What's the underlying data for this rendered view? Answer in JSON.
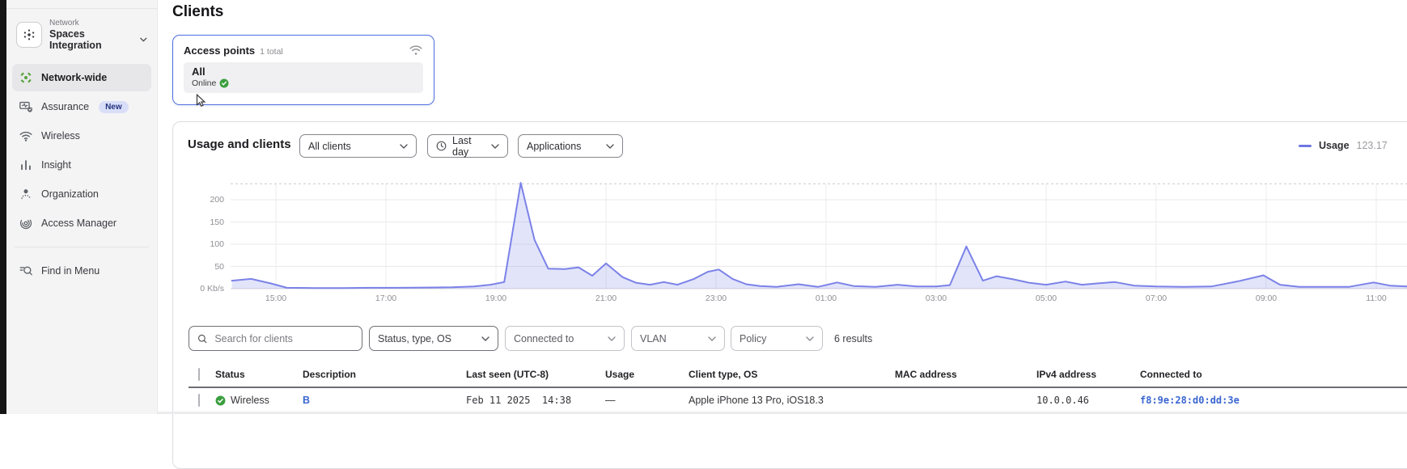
{
  "sidebar": {
    "network_label": "Network",
    "network_name": "Spaces Integration",
    "items": [
      {
        "label": "Network-wide",
        "active": true
      },
      {
        "label": "Assurance",
        "badge": "New"
      },
      {
        "label": "Wireless"
      },
      {
        "label": "Insight"
      },
      {
        "label": "Organization"
      },
      {
        "label": "Access Manager"
      }
    ],
    "footer_item": "Find in Menu"
  },
  "page": {
    "title": "Clients"
  },
  "access_points_card": {
    "title": "Access points",
    "total_label": "1 total",
    "group_name": "All",
    "status": "Online"
  },
  "usage_panel": {
    "title": "Usage and clients",
    "dropdowns": [
      {
        "label": "All clients"
      },
      {
        "label": "Last day",
        "icon": "clock"
      },
      {
        "label": "Applications"
      }
    ],
    "legend": {
      "series": "Usage",
      "value": "123.17"
    }
  },
  "chart_data": {
    "type": "area",
    "title": "Usage and clients",
    "ylabel": "Kb/s",
    "ylim": [
      0,
      236
    ],
    "yticks": [
      50,
      100,
      150,
      200
    ],
    "ytick_labels": {
      "0": "0 Kb/s",
      "50": "50",
      "100": "100",
      "150": "150",
      "200": "200"
    },
    "xticks": [
      15,
      17,
      19,
      21,
      23,
      25,
      27,
      29,
      31,
      33,
      35
    ],
    "xtick_labels": [
      "15:00",
      "17:00",
      "19:00",
      "21:00",
      "23:00",
      "01:00",
      "03:00",
      "05:00",
      "07:00",
      "09:00",
      "11:00"
    ],
    "x_range": [
      14.2,
      35.56
    ],
    "grid": true,
    "legend_position": "top-right",
    "series": [
      {
        "name": "Usage",
        "color": "#7b82e8",
        "fill": "rgba(124,131,232,0.22)",
        "points": [
          [
            14.2,
            18
          ],
          [
            14.55,
            22
          ],
          [
            14.9,
            12
          ],
          [
            15.2,
            2
          ],
          [
            15.7,
            1.5
          ],
          [
            16.2,
            1.5
          ],
          [
            16.7,
            2
          ],
          [
            17.2,
            2
          ],
          [
            17.7,
            2.5
          ],
          [
            18.2,
            3
          ],
          [
            18.6,
            5
          ],
          [
            18.9,
            9
          ],
          [
            19.15,
            15
          ],
          [
            19.45,
            238
          ],
          [
            19.7,
            110
          ],
          [
            19.95,
            45
          ],
          [
            20.25,
            44
          ],
          [
            20.5,
            48
          ],
          [
            20.75,
            29
          ],
          [
            21.0,
            57
          ],
          [
            21.3,
            26
          ],
          [
            21.55,
            13
          ],
          [
            21.8,
            9
          ],
          [
            22.05,
            15
          ],
          [
            22.3,
            9
          ],
          [
            22.6,
            22
          ],
          [
            22.85,
            38
          ],
          [
            23.05,
            43
          ],
          [
            23.3,
            22
          ],
          [
            23.55,
            10
          ],
          [
            23.8,
            6
          ],
          [
            24.1,
            4
          ],
          [
            24.5,
            10
          ],
          [
            24.85,
            4
          ],
          [
            25.2,
            14
          ],
          [
            25.5,
            6
          ],
          [
            25.9,
            4
          ],
          [
            26.3,
            9
          ],
          [
            26.65,
            5
          ],
          [
            27.0,
            5
          ],
          [
            27.25,
            8
          ],
          [
            27.55,
            95
          ],
          [
            27.85,
            18
          ],
          [
            28.1,
            28
          ],
          [
            28.4,
            21
          ],
          [
            28.7,
            13
          ],
          [
            29.0,
            9
          ],
          [
            29.35,
            16
          ],
          [
            29.65,
            9
          ],
          [
            29.95,
            12
          ],
          [
            30.25,
            15
          ],
          [
            30.6,
            7
          ],
          [
            31.0,
            5
          ],
          [
            31.5,
            4
          ],
          [
            32.0,
            5
          ],
          [
            32.5,
            17
          ],
          [
            32.95,
            30
          ],
          [
            33.25,
            9
          ],
          [
            33.6,
            4
          ],
          [
            34.0,
            4
          ],
          [
            34.5,
            4
          ],
          [
            34.95,
            14
          ],
          [
            35.25,
            7
          ],
          [
            35.56,
            5
          ]
        ]
      }
    ]
  },
  "client_filters": {
    "search_placeholder": "Search for clients",
    "dropdowns": [
      "Status, type, OS",
      "Connected to",
      "VLAN",
      "Policy"
    ],
    "results_text": "6 results"
  },
  "table": {
    "columns": [
      "Status",
      "Description",
      "Last seen (UTC-8)",
      "Usage",
      "Client type, OS",
      "MAC address",
      "IPv4 address",
      "Connected to"
    ],
    "rows": [
      {
        "status": "Wireless",
        "description": "B",
        "last_seen": "Feb 11 2025  14:38",
        "usage": "—",
        "client_type": "Apple iPhone 13 Pro, iOS18.3",
        "mac_address_redacted": true,
        "ipv4": "10.0.0.46",
        "connected_to": "f8:9e:28:d0:dd:3e"
      }
    ]
  }
}
